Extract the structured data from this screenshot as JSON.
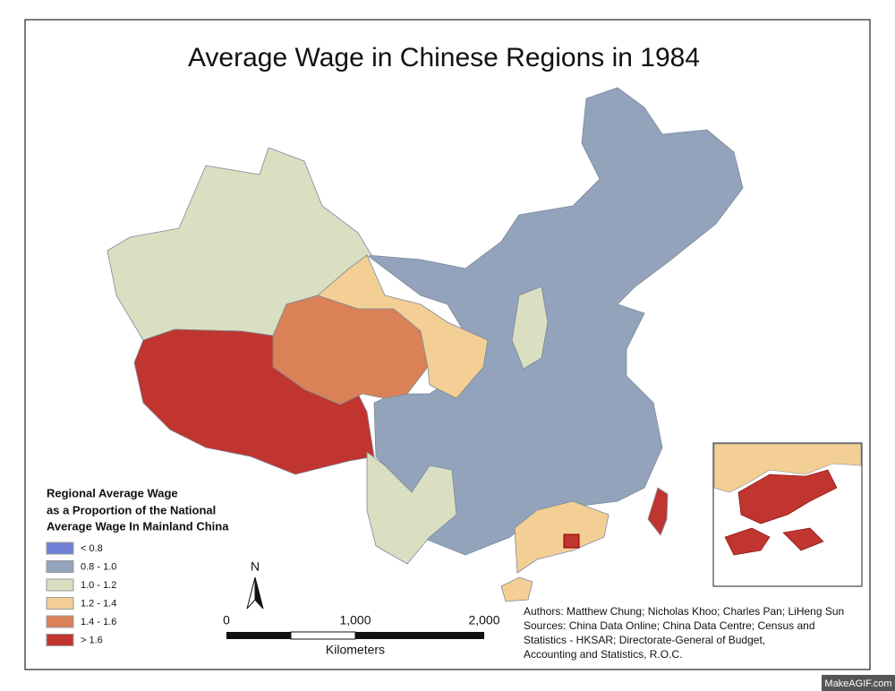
{
  "title": "Average Wage in Chinese Regions in 1984",
  "legend": {
    "title_lines": [
      "Regional Average Wage",
      "as a Proportion of the National",
      "Average Wage In Mainland China"
    ],
    "items": [
      {
        "label": "< 0.8",
        "color": "#6f7fd6"
      },
      {
        "label": "0.8 - 1.0",
        "color": "#92a3bb"
      },
      {
        "label": "1.0 - 1.2",
        "color": "#dadfc1"
      },
      {
        "label": "1.2 - 1.4",
        "color": "#f3cf95"
      },
      {
        "label": "1.4 - 1.6",
        "color": "#da8157"
      },
      {
        "label": "> 1.6",
        "color": "#c0352f"
      }
    ]
  },
  "north": "N",
  "scale": {
    "ticks": [
      "0",
      "1,000",
      "2,000"
    ],
    "unit": "Kilometers"
  },
  "credits": [
    "Authors: Matthew Chung; Nicholas Khoo; Charles Pan; LiHeng Sun",
    "Sources: China Data Online; China Data Centre; Census and",
    "Statistics - HKSAR; Directorate-General of Budget,",
    "Accounting and Statistics, R.O.C."
  ],
  "watermark": "MakeAGIF.com"
}
